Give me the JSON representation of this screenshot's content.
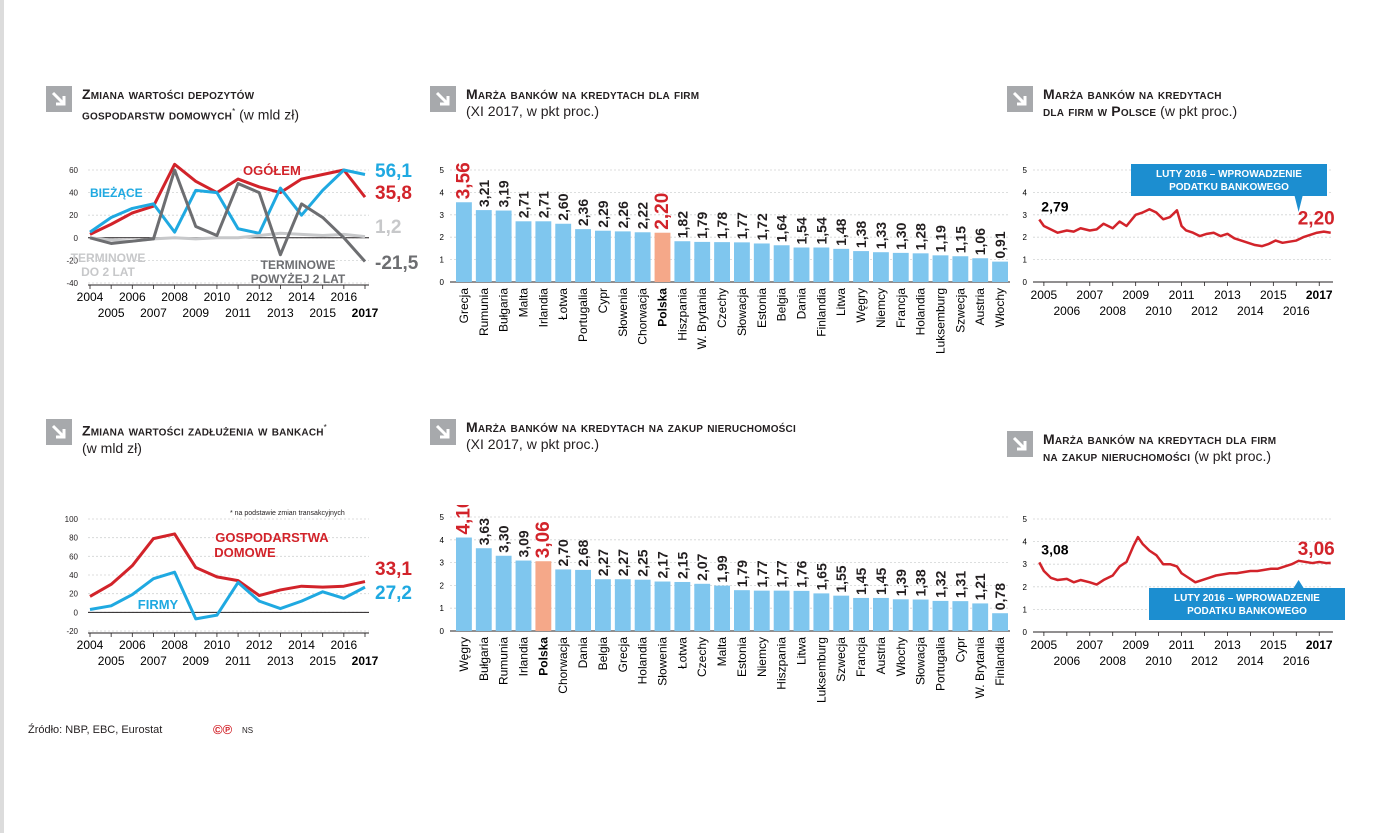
{
  "colors": {
    "red": "#d2232a",
    "blue": "#1fa9e1",
    "darkgray": "#6d6e71",
    "lightgray": "#c7c8ca",
    "bar": "#7fc6ee",
    "bar_highlight": "#f5a889",
    "callout": "#1c8ed0"
  },
  "source": "Źródło: NBP, EBC, Eurostat",
  "logo": "©℗",
  "author": "NS",
  "icons": {
    "header_arrow": "arrow-down-right-icon"
  },
  "chart_data": [
    {
      "id": "deposits",
      "type": "line",
      "title_bold": "Zmiana wartości depozytów",
      "title_bold2": "gospodarstw domowych",
      "title_mark": "*",
      "title_rest": " (w mld zł)",
      "x": [
        2004,
        2005,
        2006,
        2007,
        2008,
        2009,
        2010,
        2011,
        2012,
        2013,
        2014,
        2015,
        2016,
        2017
      ],
      "x_top_labels": [
        "2004",
        "2006",
        "2008",
        "2010",
        "2012",
        "2014",
        "2016"
      ],
      "x_bottom_labels": [
        "2005",
        "2007",
        "2009",
        "2011",
        "2013",
        "2015",
        "2017"
      ],
      "ylim": [
        -40,
        60
      ],
      "yticks": [
        "60",
        "40",
        "20",
        "0",
        "-20",
        "-40"
      ],
      "series": [
        {
          "name": "OGÓŁEM",
          "color": "red",
          "values": [
            3,
            12,
            22,
            28,
            65,
            50,
            40,
            52,
            45,
            40,
            52,
            56,
            60,
            36
          ],
          "end_label": "35,8"
        },
        {
          "name": "BIEŻĄCE",
          "color": "blue",
          "values": [
            5,
            18,
            26,
            30,
            5,
            42,
            40,
            8,
            4,
            44,
            20,
            42,
            60,
            56
          ],
          "end_label": "56,1"
        },
        {
          "name": "TERMINOWE DO 2 LAT",
          "color": "lightgray",
          "values": [
            0,
            -2,
            -3,
            -1,
            0,
            -1,
            0,
            0,
            2,
            4,
            3,
            2,
            3,
            1
          ],
          "end_label": "1,2"
        },
        {
          "name": "TERMINOWE POWYŻEJ 2 LAT",
          "color": "darkgray",
          "values": [
            0,
            -5,
            -3,
            -1,
            60,
            10,
            2,
            48,
            40,
            -15,
            30,
            18,
            0,
            -21
          ],
          "end_label": "-21,5"
        }
      ],
      "labels": {
        "ogolem": "OGÓŁEM",
        "biezace": "BIEŻĄCE",
        "term2a": "TERMINOWE",
        "term2b": "DO 2 LAT",
        "termp2a": "TERMINOWE",
        "termp2b": "POWYŻEJ 2 LAT"
      }
    },
    {
      "id": "debt",
      "type": "line",
      "title_bold": "Zmiana wartości zadłużenia w bankach",
      "title_mark": "*",
      "title_rest": "(w mld zł)",
      "note": "* na podstawie zmian transakcyjnych",
      "x": [
        2004,
        2005,
        2006,
        2007,
        2008,
        2009,
        2010,
        2011,
        2012,
        2013,
        2014,
        2015,
        2016,
        2017
      ],
      "x_top_labels": [
        "2004",
        "2006",
        "2008",
        "2010",
        "2012",
        "2014",
        "2016"
      ],
      "x_bottom_labels": [
        "2005",
        "2007",
        "2009",
        "2011",
        "2013",
        "2015",
        "2017"
      ],
      "ylim": [
        -20,
        100
      ],
      "yticks": [
        "100",
        "80",
        "60",
        "40",
        "20",
        "0",
        "-20"
      ],
      "series": [
        {
          "name": "GOSPODARSTWA DOMOWE",
          "color": "red",
          "values": [
            17,
            30,
            50,
            79,
            84,
            48,
            38,
            34,
            18,
            24,
            28,
            27,
            28,
            33
          ],
          "end_label": "33,1"
        },
        {
          "name": "FIRMY",
          "color": "blue",
          "values": [
            3,
            7,
            19,
            36,
            43,
            -7,
            -3,
            32,
            12,
            4,
            12,
            22,
            15,
            27
          ],
          "end_label": "27,2"
        }
      ],
      "labels": {
        "gd1": "GOSPODARSTWA",
        "gd2": "DOMOWE",
        "firmy": "FIRMY"
      }
    },
    {
      "id": "margin_firms",
      "type": "bar",
      "title_bold": "Marża banków na kredytach dla firm",
      "title_rest": "(XI 2017, w pkt proc.)",
      "ylim": [
        0,
        5
      ],
      "yticks": [
        "5",
        "4",
        "3",
        "2",
        "1",
        "0"
      ],
      "categories": [
        "Grecja",
        "Rumunia",
        "Bułgaria",
        "Malta",
        "Irlandia",
        "Łotwa",
        "Portugalia",
        "Cypr",
        "Słowenia",
        "Chorwacja",
        "Polska",
        "Hiszpania",
        "W. Brytania",
        "Czechy",
        "Słowacja",
        "Estonia",
        "Belgia",
        "Dania",
        "Finlandia",
        "Litwa",
        "Węgry",
        "Niemcy",
        "Francja",
        "Holandia",
        "Luksemburg",
        "Szwecja",
        "Austria",
        "Włochy"
      ],
      "values": [
        3.56,
        3.21,
        3.19,
        2.71,
        2.71,
        2.6,
        2.36,
        2.29,
        2.26,
        2.22,
        2.2,
        1.82,
        1.79,
        1.78,
        1.77,
        1.72,
        1.64,
        1.54,
        1.54,
        1.48,
        1.38,
        1.33,
        1.3,
        1.28,
        1.19,
        1.15,
        1.06,
        0.91
      ],
      "value_labels": [
        "3,56",
        "3,21",
        "3,19",
        "2,71",
        "2,71",
        "2,60",
        "2,36",
        "2,29",
        "2,26",
        "2,22",
        "2,20",
        "1,82",
        "1,79",
        "1,78",
        "1,77",
        "1,72",
        "1,64",
        "1,54",
        "1,54",
        "1,48",
        "1,38",
        "1,33",
        "1,30",
        "1,28",
        "1,19",
        "1,15",
        "1,06",
        "0,91"
      ],
      "highlight": "Polska",
      "top": "Grecja"
    },
    {
      "id": "margin_realestate",
      "type": "bar",
      "title_bold": "Marża banków na kredytach na zakup nieruchomości",
      "title_rest": "(XI 2017, w pkt proc.)",
      "ylim": [
        0,
        5
      ],
      "yticks": [
        "5",
        "4",
        "3",
        "2",
        "1",
        "0"
      ],
      "categories": [
        "Węgry",
        "Bułgaria",
        "Rumunia",
        "Irlandia",
        "Polska",
        "Chorwacja",
        "Dania",
        "Belgia",
        "Grecja",
        "Holandia",
        "Słowenia",
        "Łotwa",
        "Czechy",
        "Malta",
        "Estonia",
        "Niemcy",
        "Hiszpania",
        "Litwa",
        "Luksemburg",
        "Szwecja",
        "Francja",
        "Austria",
        "Włochy",
        "Słowacja",
        "Portugalia",
        "Cypr",
        "W. Brytania",
        "Finlandia"
      ],
      "values": [
        4.1,
        3.63,
        3.3,
        3.09,
        3.06,
        2.7,
        2.68,
        2.27,
        2.27,
        2.25,
        2.17,
        2.15,
        2.07,
        1.99,
        1.79,
        1.77,
        1.77,
        1.76,
        1.65,
        1.55,
        1.45,
        1.45,
        1.39,
        1.38,
        1.32,
        1.31,
        1.21,
        0.78
      ],
      "value_labels": [
        "4,10",
        "3,63",
        "3,30",
        "3,09",
        "3,06",
        "2,70",
        "2,68",
        "2,27",
        "2,27",
        "2,25",
        "2,17",
        "2,15",
        "2,07",
        "1,99",
        "1,79",
        "1,77",
        "1,77",
        "1,76",
        "1,65",
        "1,55",
        "1,45",
        "1,45",
        "1,39",
        "1,38",
        "1,32",
        "1,31",
        "1,21",
        "0,78"
      ],
      "highlight": "Polska",
      "top": "Węgry"
    },
    {
      "id": "margin_pl_firms",
      "type": "line",
      "title_bold": "Marża banków na kredytach",
      "title_bold2": "dla firm w Polsce",
      "title_rest": " (w pkt proc.)",
      "ylim": [
        0,
        5
      ],
      "yticks": [
        "5",
        "4",
        "3",
        "2",
        "1",
        "0"
      ],
      "xlim": [
        2004.7,
        2017.6
      ],
      "x_top_labels": [
        "2005",
        "2007",
        "2009",
        "2011",
        "2013",
        "2015",
        "2017"
      ],
      "x_bottom_labels": [
        "2006",
        "2008",
        "2010",
        "2012",
        "2014",
        "2016"
      ],
      "x": [
        2004.8,
        2005.0,
        2005.3,
        2005.6,
        2006.0,
        2006.3,
        2006.6,
        2007.0,
        2007.3,
        2007.6,
        2008.0,
        2008.3,
        2008.6,
        2009.0,
        2009.3,
        2009.6,
        2009.9,
        2010.2,
        2010.5,
        2010.8,
        2011.0,
        2011.2,
        2011.5,
        2011.8,
        2012.1,
        2012.4,
        2012.7,
        2013.0,
        2013.3,
        2013.6,
        2013.9,
        2014.2,
        2014.5,
        2014.8,
        2015.1,
        2015.4,
        2015.7,
        2016.0,
        2016.3,
        2016.6,
        2016.9,
        2017.2,
        2017.5
      ],
      "values": [
        2.79,
        2.5,
        2.35,
        2.2,
        2.3,
        2.25,
        2.4,
        2.3,
        2.35,
        2.6,
        2.4,
        2.7,
        2.5,
        3.0,
        3.1,
        3.25,
        3.1,
        2.8,
        2.9,
        3.2,
        2.5,
        2.3,
        2.2,
        2.05,
        2.15,
        2.2,
        2.05,
        2.15,
        1.95,
        1.85,
        1.75,
        1.65,
        1.6,
        1.7,
        1.85,
        1.75,
        1.8,
        1.85,
        2.0,
        2.1,
        2.2,
        2.25,
        2.2
      ],
      "start_label": "2,79",
      "end_label": "2,20",
      "callout": {
        "line1": "LUTY 2016 – WPROWADZENIE",
        "line2": "PODATKU BANKOWEGO",
        "x": 2016.1
      }
    },
    {
      "id": "margin_pl_realestate",
      "type": "line",
      "title_bold": "Marża banków na kredytach dla firm",
      "title_bold2": "na zakup nieruchomości",
      "title_rest": " (w pkt proc.)",
      "ylim": [
        0,
        5
      ],
      "yticks": [
        "5",
        "4",
        "3",
        "2",
        "1",
        "0"
      ],
      "xlim": [
        2004.7,
        2017.6
      ],
      "x_top_labels": [
        "2005",
        "2007",
        "2009",
        "2011",
        "2013",
        "2015",
        "2017"
      ],
      "x_bottom_labels": [
        "2006",
        "2008",
        "2010",
        "2012",
        "2014",
        "2016"
      ],
      "x": [
        2004.8,
        2005.0,
        2005.3,
        2005.6,
        2006.0,
        2006.3,
        2006.6,
        2007.0,
        2007.3,
        2007.6,
        2008.0,
        2008.3,
        2008.6,
        2008.9,
        2009.1,
        2009.3,
        2009.6,
        2009.9,
        2010.2,
        2010.5,
        2010.8,
        2011.0,
        2011.3,
        2011.6,
        2011.9,
        2012.2,
        2012.5,
        2012.8,
        2013.1,
        2013.4,
        2013.7,
        2014.0,
        2014.3,
        2014.6,
        2014.9,
        2015.2,
        2015.5,
        2015.8,
        2016.1,
        2016.4,
        2016.7,
        2017.0,
        2017.3,
        2017.5
      ],
      "values": [
        3.08,
        2.7,
        2.4,
        2.3,
        2.35,
        2.2,
        2.3,
        2.2,
        2.1,
        2.3,
        2.5,
        2.9,
        3.1,
        3.8,
        4.2,
        3.9,
        3.6,
        3.4,
        3.0,
        3.0,
        2.9,
        2.6,
        2.4,
        2.2,
        2.3,
        2.4,
        2.5,
        2.55,
        2.6,
        2.6,
        2.65,
        2.7,
        2.7,
        2.75,
        2.8,
        2.8,
        2.9,
        3.0,
        3.15,
        3.1,
        3.05,
        3.1,
        3.05,
        3.06
      ],
      "start_label": "3,08",
      "end_label": "3,06",
      "callout": {
        "line1": "LUTY 2016 – WPROWADZENIE",
        "line2": "PODATKU BANKOWEGO",
        "x": 2016.1
      }
    }
  ]
}
